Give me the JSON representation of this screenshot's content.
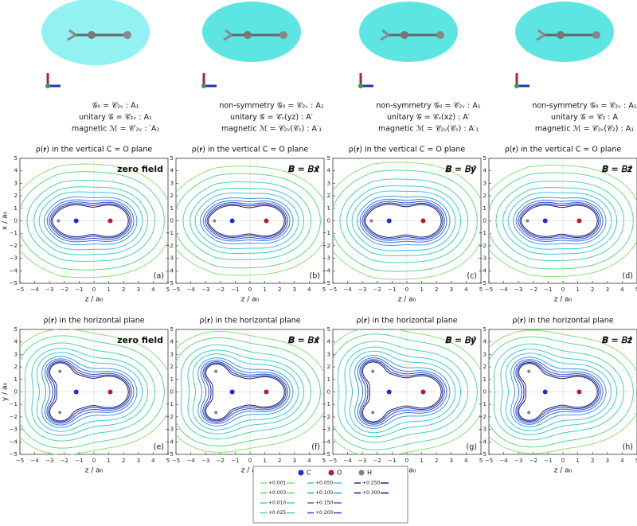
{
  "columns": [
    {
      "symmetry": [
        "𝒢₀ = 𝒞₂ᵥ : A₁",
        "unitary 𝒢 = 𝒞₂ᵥ : A₁",
        "magnetic ℳ = 𝒞′₂ᵥ : ′A₁"
      ],
      "top_title": "ρ(𝐫) in the vertical C = O plane",
      "top_field": "zero field",
      "top_label": "(a)",
      "bottom_title": "ρ(𝐫) in the horizontal plane",
      "bottom_field": "zero field",
      "bottom_label": "(e)"
    },
    {
      "symmetry": [
        "non-symmetry 𝒢₀ = 𝒞₂ᵥ : A₁",
        "unitary 𝒢 = 𝒞ₛ(yz) : A′",
        "magnetic ℳ = 𝒞₂ᵥ(𝒞ₛ) : A′₁"
      ],
      "top_title": "ρ(𝐫) in the vertical C = O plane",
      "top_field": "𝑩 = 𝐵𝒙̂",
      "top_label": "(b)",
      "bottom_title": "ρ(𝐫) in the horizontal plane",
      "bottom_field": "𝑩 = 𝐵𝒙̂",
      "bottom_label": "(f)"
    },
    {
      "symmetry": [
        "non-symmetry 𝒢₀ = 𝒞₂ᵥ : A₁",
        "unitary 𝒢 = 𝒞ₛ(xz) : A′",
        "magnetic ℳ = 𝒞₂ᵥ(𝒞ₛ) : A′₁"
      ],
      "top_title": "ρ(𝐫) in the vertical C = O plane",
      "top_field": "𝑩 = 𝐵𝒚̂",
      "top_label": "(c)",
      "bottom_title": "ρ(𝐫) in the horizontal plane",
      "bottom_field": "𝑩 = 𝐵𝒚̂",
      "bottom_label": "(g)"
    },
    {
      "symmetry": [
        "non-symmetry 𝒢₀ = 𝒞₂ᵥ : A₁",
        "unitary 𝒢 = 𝒞₂ : A",
        "magnetic ℳ = 𝒞₂ᵥ(𝒞₂) : A₁"
      ],
      "top_title": "ρ(𝐫) in the vertical C = O plane",
      "top_field": "𝑩 = 𝐵𝒛̂",
      "top_label": "(d)",
      "bottom_title": "ρ(𝐫) in the horizontal plane",
      "bottom_field": "𝑩 = 𝐵𝒛̂",
      "bottom_label": "(h)"
    }
  ],
  "axis_ticks": [
    "−5",
    "−4",
    "−3",
    "−2",
    "−1",
    "0",
    "1",
    "2",
    "3",
    "4",
    "5"
  ],
  "xlabel": "z / a₀",
  "ylabel_top": "x / a₀",
  "ylabel_bottom": "y / a₀",
  "legend": {
    "atoms": [
      {
        "name": "C",
        "color": "#1f2fc8"
      },
      {
        "name": "O",
        "color": "#b0202a"
      },
      {
        "name": "H",
        "color": "#808080"
      }
    ],
    "levels": [
      {
        "label": "+0.001",
        "color": "#88e070"
      },
      {
        "label": "+0.003",
        "color": "#5ad880"
      },
      {
        "label": "+0.010",
        "color": "#45d6a0"
      },
      {
        "label": "+0.025",
        "color": "#38cfc0"
      },
      {
        "label": "+0.050",
        "color": "#35c8e0"
      },
      {
        "label": "+0.100",
        "color": "#3a9ae0"
      },
      {
        "label": "+0.150",
        "color": "#3570e0"
      },
      {
        "label": "+0.200",
        "color": "#2448d0"
      },
      {
        "label": "+0.250",
        "color": "#1c2aa8"
      },
      {
        "label": "+0.300",
        "color": "#15176e"
      }
    ]
  }
}
